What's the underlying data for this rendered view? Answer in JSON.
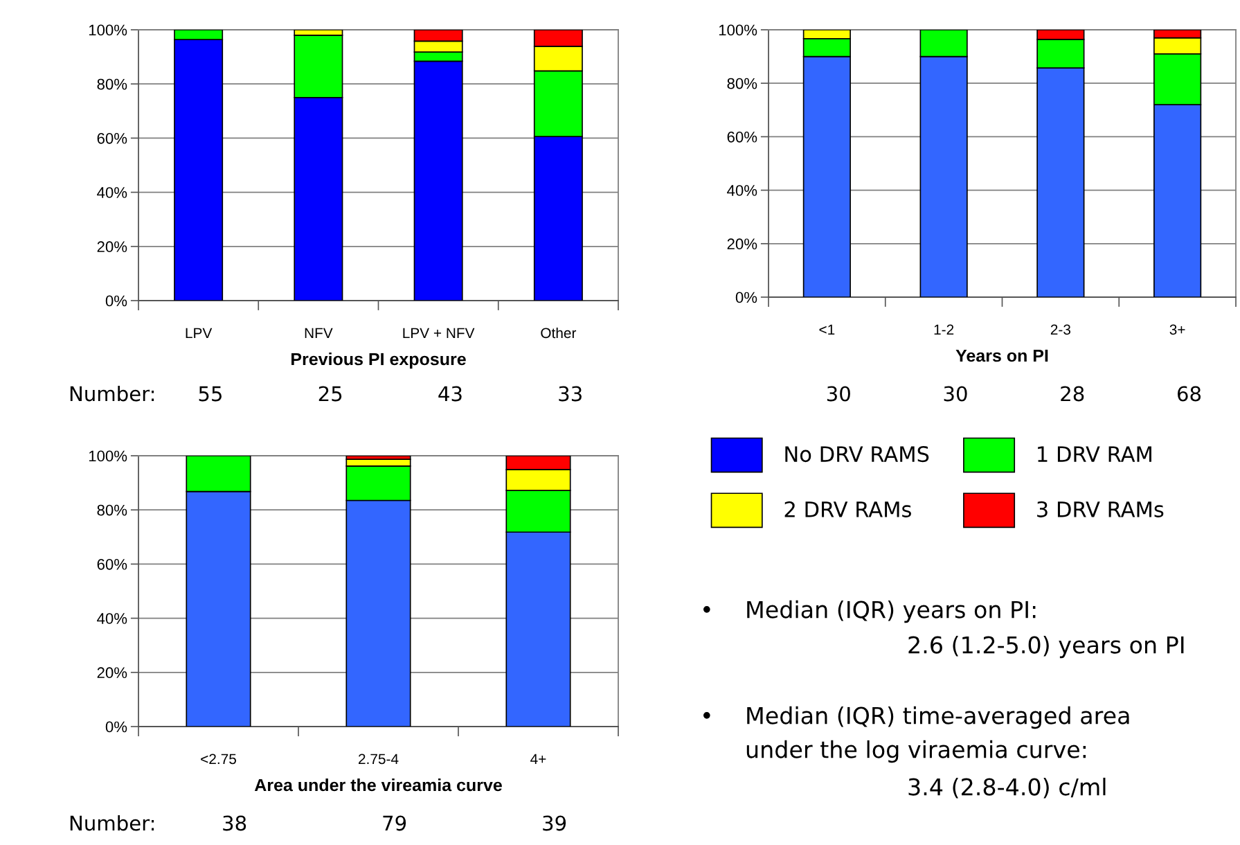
{
  "chart_data": [
    {
      "type": "bar",
      "stacked": true,
      "xlabel": "Previous PI exposure",
      "categories": [
        "LPV",
        "NFV",
        "LPV + NFV",
        "Other"
      ],
      "ylim": [
        0,
        100
      ],
      "yticks": [
        {
          "value": 0,
          "label": "0%"
        },
        {
          "value": 20,
          "label": "20%"
        },
        {
          "value": 40,
          "label": "40%"
        },
        {
          "value": 60,
          "label": "60%"
        },
        {
          "value": 80,
          "label": "80%"
        },
        {
          "value": 100,
          "label": "100%"
        }
      ],
      "grid": "y",
      "legend": "right",
      "series": [
        {
          "name": "No DRV RAMS",
          "color": "#0000ff",
          "values": [
            96.4,
            75,
            88.4,
            60.6
          ]
        },
        {
          "name": "1 DRV RAM",
          "color": "#00ff00",
          "values": [
            3.6,
            23,
            3.4,
            24.2
          ]
        },
        {
          "name": "2 DRV RAMs",
          "color": "#ffff00",
          "values": [
            null,
            2,
            4,
            9.1
          ]
        },
        {
          "name": "3 DRV RAMs",
          "color": "#ff0000",
          "values": [
            null,
            null,
            4.2,
            6.1
          ]
        }
      ],
      "annotations": [
        "Number:",
        "55",
        "25",
        "43",
        "33"
      ]
    },
    {
      "type": "bar",
      "stacked": true,
      "xlabel": "Years on PI",
      "categories": [
        "<1",
        "1-2",
        "2-3",
        "3+"
      ],
      "ylim": [
        0,
        100
      ],
      "yticks": [
        {
          "value": 0,
          "label": "0%"
        },
        {
          "value": 20,
          "label": "20%"
        },
        {
          "value": 40,
          "label": "40%"
        },
        {
          "value": 60,
          "label": "60%"
        },
        {
          "value": 80,
          "label": "80%"
        },
        {
          "value": 100,
          "label": "100%"
        }
      ],
      "grid": "y",
      "series": [
        {
          "color": "#3366ff",
          "values": [
            90,
            90,
            85.7,
            72
          ]
        },
        {
          "color": "#00ff00",
          "values": [
            6.7,
            10,
            10.7,
            19
          ]
        },
        {
          "color": "#ffff00",
          "values": [
            3.3,
            null,
            null,
            6
          ]
        },
        {
          "color": "#ff0000",
          "values": [
            null,
            null,
            3.6,
            3
          ]
        }
      ],
      "annotations": [
        "30",
        "30",
        "28",
        "68"
      ]
    },
    {
      "type": "bar",
      "stacked": true,
      "xlabel": "Area under the vireamia curve",
      "categories": [
        "<2.75",
        "2.75-4",
        "4+"
      ],
      "ylim": [
        0,
        100
      ],
      "yticks": [
        {
          "value": 0,
          "label": "0%"
        },
        {
          "value": 20,
          "label": "20%"
        },
        {
          "value": 40,
          "label": "40%"
        },
        {
          "value": 60,
          "label": "60%"
        },
        {
          "value": 80,
          "label": "80%"
        },
        {
          "value": 100,
          "label": "100%"
        }
      ],
      "grid": "y",
      "series": [
        {
          "color": "#3366ff",
          "values": [
            86.8,
            83.5,
            71.8
          ]
        },
        {
          "color": "#00ff00",
          "values": [
            13.2,
            12.7,
            15.4
          ]
        },
        {
          "color": "#ffff00",
          "values": [
            null,
            2.5,
            7.7
          ]
        },
        {
          "color": "#ff0000",
          "values": [
            null,
            1.3,
            5.1
          ]
        }
      ],
      "annotations": [
        "Number:",
        "38",
        "79",
        "39"
      ]
    },
    {
      "type": "other",
      "annotations": [
        "•",
        "Median (IQR) years on PI:",
        "2.6 (1.2-5.0) years on PI",
        "•",
        "Median (IQR) time-averaged area",
        "under the log viraemia curve:",
        "3.4 (2.8-4.0) c/ml"
      ]
    }
  ]
}
